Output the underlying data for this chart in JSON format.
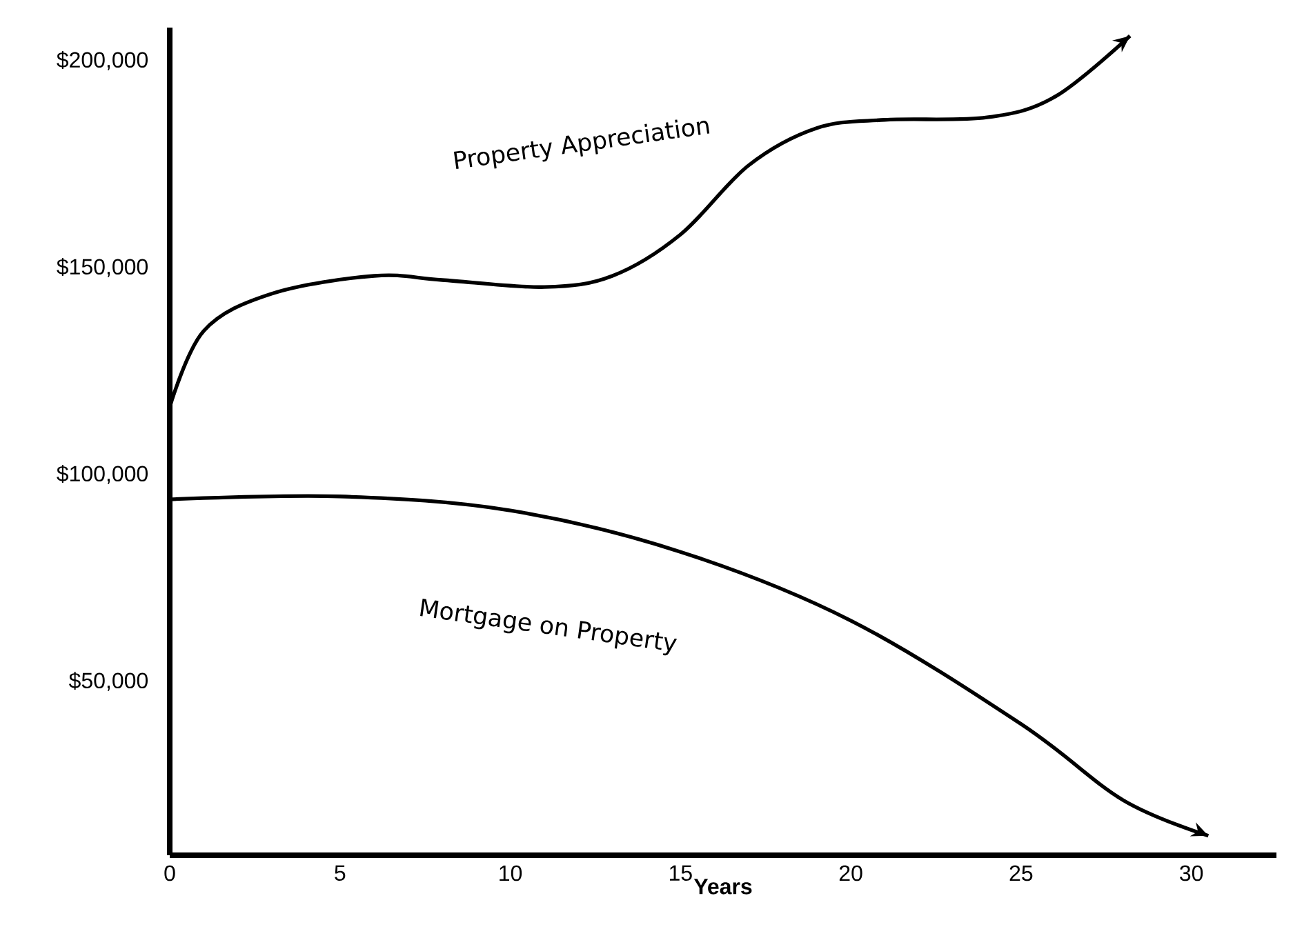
{
  "chart_data": {
    "type": "line",
    "xlabel": "Years",
    "xlim": [
      0,
      32.5
    ],
    "ylim": [
      8000,
      208000
    ],
    "xticks": [
      0,
      5,
      10,
      15,
      20,
      25,
      30
    ],
    "yticks": [
      {
        "value": 50000,
        "label": "$50,000"
      },
      {
        "value": 100000,
        "label": "$100,000"
      },
      {
        "value": 150000,
        "label": "$150,000"
      },
      {
        "value": 200000,
        "label": "$200,000"
      }
    ],
    "series": [
      {
        "name": "Property Appreciation",
        "color": "#000000",
        "x": [
          0,
          1,
          3,
          6,
          8,
          11,
          13,
          15,
          17,
          19,
          21,
          24,
          26,
          28.2
        ],
        "values": [
          116300,
          134700,
          143700,
          148000,
          147000,
          145300,
          148000,
          158000,
          174700,
          183700,
          185700,
          186300,
          191300,
          206000
        ]
      },
      {
        "name": "Mortgage on Property",
        "color": "#000000",
        "x": [
          0,
          5,
          10,
          15,
          20,
          25,
          28,
          30.5
        ],
        "values": [
          94000,
          94700,
          91300,
          81300,
          64700,
          39700,
          21300,
          12700
        ]
      }
    ],
    "grid": false,
    "marker": "none",
    "line_style": "solid"
  }
}
